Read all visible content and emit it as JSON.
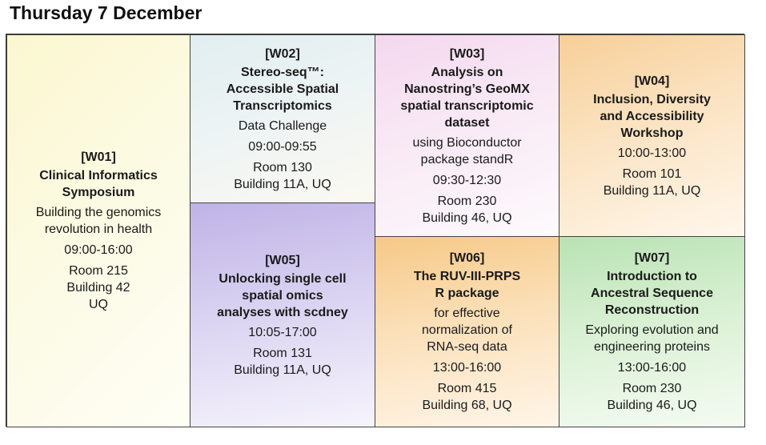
{
  "page": {
    "title": "Thursday 7 December"
  },
  "sessions": [
    {
      "code": "[W01]",
      "title": [
        "Clinical Informatics",
        "Symposium"
      ],
      "desc": [
        "Building the genomics",
        "revolution in health"
      ],
      "time": "09:00-16:00",
      "location": [
        "Room 215",
        "Building 42",
        "UQ"
      ]
    },
    {
      "code": "[W02]",
      "title": [
        "Stereo-seq™:",
        "Accessible Spatial",
        "Transcriptomics"
      ],
      "desc": [
        "Data Challenge"
      ],
      "time": "09:00-09:55",
      "location": [
        "Room 130",
        "Building 11A, UQ"
      ]
    },
    {
      "code": "[W03]",
      "title": [
        "Analysis on",
        "Nanostring’s GeoMX",
        "spatial transcriptomic",
        "dataset"
      ],
      "desc": [
        "using Bioconductor",
        "package standR"
      ],
      "time": "09:30-12:30",
      "location": [
        "Room 230",
        "Building 46, UQ"
      ]
    },
    {
      "code": "[W04]",
      "title": [
        "Inclusion, Diversity",
        "and Accessibility",
        "Workshop"
      ],
      "desc": [],
      "time": "10:00-13:00",
      "location": [
        "Room 101",
        "Building 11A, UQ"
      ]
    },
    {
      "code": "[W05]",
      "title": [
        "Unlocking single cell",
        "spatial omics",
        "analyses with scdney"
      ],
      "desc": [],
      "time": "10:05-17:00",
      "location": [
        "Room 131",
        "Building 11A, UQ"
      ]
    },
    {
      "code": "[W06]",
      "title": [
        "The RUV-III-PRPS",
        "R package"
      ],
      "desc": [
        "for effective",
        "normalization of",
        "RNA-seq data"
      ],
      "time": "13:00-16:00",
      "location": [
        "Room 415",
        "Building 68, UQ"
      ]
    },
    {
      "code": "[W07]",
      "title": [
        "Introduction to",
        "Ancestral Sequence",
        "Reconstruction"
      ],
      "desc": [
        "Exploring evolution and",
        "engineering proteins"
      ],
      "time": "13:00-16:00",
      "location": [
        "Room 230",
        "Building 46, UQ"
      ]
    }
  ]
}
